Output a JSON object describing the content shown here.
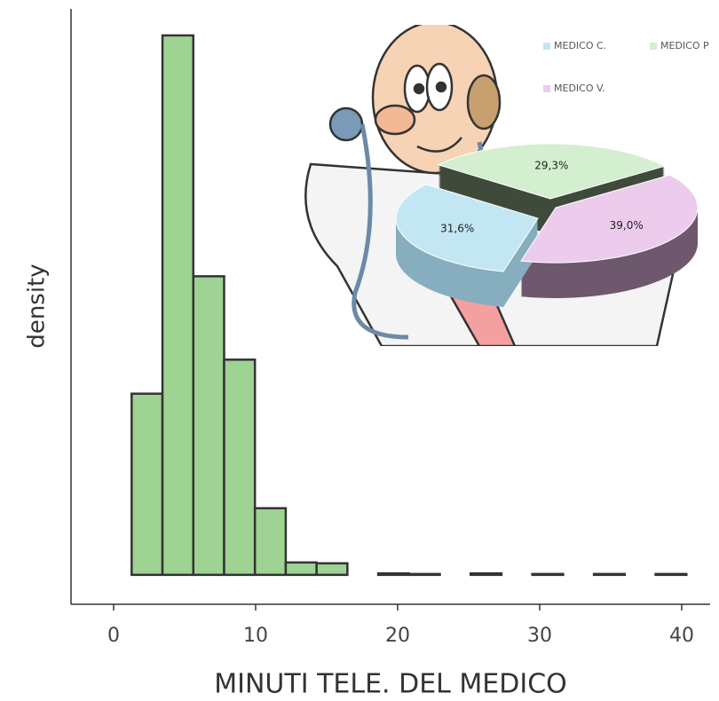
{
  "chart_data": [
    {
      "type": "histogram",
      "x_label": "MINUTI TELE. DEL MEDICO",
      "y_label": "density",
      "bins": [
        -0.9,
        1.27,
        3.44,
        5.61,
        7.78,
        9.95,
        12.12,
        14.29,
        16.46,
        18.63,
        20.8,
        22.97,
        25.14,
        27.31,
        29.48,
        31.65,
        33.82,
        35.99,
        38.16,
        40.33
      ],
      "values": [
        0,
        0.0628,
        0.187,
        0.1035,
        0.0746,
        0.0231,
        0.0043,
        0.004,
        0,
        0.0005,
        0.0003,
        0,
        0.0005,
        0,
        0.0003,
        0,
        0.0003,
        0,
        0.0003
      ],
      "color": "#9ed393",
      "xlim": [
        -3,
        42
      ],
      "ylim": [
        -0.0102,
        0.1962
      ],
      "xticks": [
        0,
        10,
        20,
        30,
        40
      ]
    },
    {
      "type": "pie",
      "categories": [
        "MEDICO C.",
        "MEDICO P",
        "MEDICO V."
      ],
      "values": [
        31.6,
        29.3,
        39.0
      ],
      "value_labels": [
        "31,6%",
        "29,3%",
        "39,0%"
      ],
      "colors": [
        "#c3e6f3",
        "#d3efcf",
        "#eccbed"
      ]
    }
  ]
}
